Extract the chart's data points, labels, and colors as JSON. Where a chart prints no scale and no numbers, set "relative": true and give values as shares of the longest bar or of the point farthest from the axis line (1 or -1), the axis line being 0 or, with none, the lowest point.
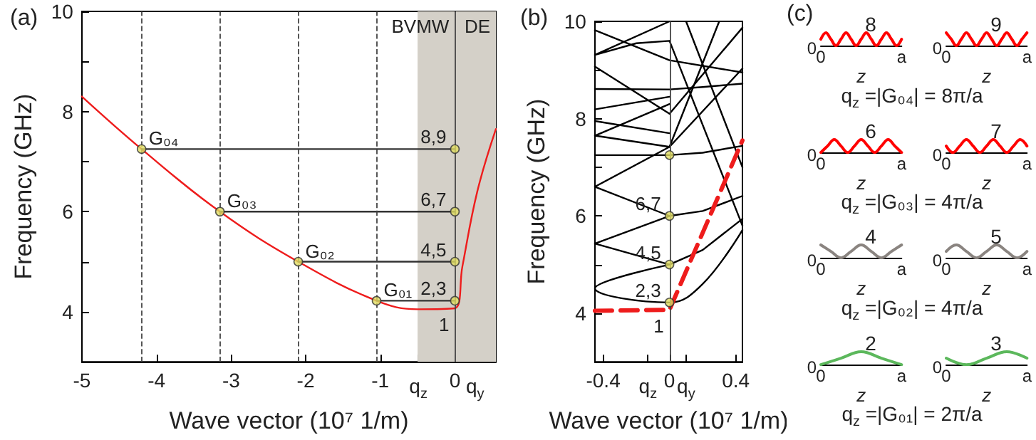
{
  "chart_data": [
    {
      "type": "line",
      "title": "(a)",
      "xlabel": "Wave vector (10⁷ 1/m)",
      "ylabel": "Frequency (GHz)",
      "xlim": [
        -5,
        0.55
      ],
      "ylim": [
        3,
        10
      ],
      "xticks": [
        -5,
        -4,
        -3,
        -2,
        -1,
        {
          "value": -0.49,
          "label": "q$_{z}$"
        },
        0,
        {
          "value": 0.27,
          "label": "q$_{y}$"
        }
      ],
      "yticks": [
        4,
        {
          "value": 5,
          "label": null
        },
        6,
        {
          "value": 7,
          "label": null
        },
        8,
        {
          "value": 9,
          "label": null
        },
        10
      ],
      "marker": "none",
      "line_style": "solid",
      "grid": false,
      "series": [
        {
          "color": "#ee1c1c",
          "x": [
            -5,
            -4.2,
            -3.15,
            -2.1,
            -1.05,
            -0.5,
            0,
            0.1,
            0.3,
            0.55
          ],
          "values": [
            8.3,
            7.25,
            6.0,
            5.0,
            4.22,
            4.05,
            4.07,
            4.9,
            6.4,
            7.65
          ]
        },
        {
          "color": "#333333",
          "x": [
            -4.2,
            0
          ],
          "values": [
            7.25,
            7.25
          ]
        },
        {
          "color": "#333333",
          "x": [
            -3.15,
            0
          ],
          "values": [
            6.0,
            6.0
          ]
        },
        {
          "color": "#333333",
          "x": [
            -2.1,
            0
          ],
          "values": [
            5.0,
            5.0
          ]
        },
        {
          "color": "#333333",
          "x": [
            -1.05,
            0
          ],
          "values": [
            4.22,
            4.22
          ]
        },
        {
          "type": "scatter",
          "marker": "circle",
          "color": "#e0dc60",
          "x": [
            -4.2,
            -3.15,
            -2.1,
            -1.05,
            0,
            0,
            0,
            0
          ],
          "values": [
            7.25,
            6.0,
            5.0,
            4.22,
            7.25,
            6.0,
            5.0,
            4.22
          ]
        }
      ],
      "annotations": [
        {
          "text": "G₀₄",
          "x": -4.2,
          "y": 7.25
        },
        {
          "text": "G₀₃",
          "x": -3.15,
          "y": 6.0
        },
        {
          "text": "G₀₂",
          "x": -2.1,
          "y": 5.0
        },
        {
          "text": "G₀₁",
          "x": -1.05,
          "y": 4.22
        },
        {
          "text": "8,9",
          "x": 0,
          "y": 7.25
        },
        {
          "text": "6,7",
          "x": 0,
          "y": 6.0
        },
        {
          "text": "4,5",
          "x": 0,
          "y": 5.0
        },
        {
          "text": "2,3",
          "x": 0,
          "y": 4.22
        },
        {
          "text": "1",
          "x": 0,
          "y": 4.07
        }
      ],
      "ref_lines": [
        {
          "axis": "x",
          "value": -4.2,
          "line_style": "dashed",
          "color": "#444444"
        },
        {
          "axis": "x",
          "value": -3.15,
          "line_style": "dashed",
          "color": "#444444"
        },
        {
          "axis": "x",
          "value": -2.1,
          "line_style": "dashed",
          "color": "#444444"
        },
        {
          "axis": "x",
          "value": -1.05,
          "line_style": "dashed",
          "color": "#444444"
        },
        {
          "axis": "x",
          "value": 0,
          "line_style": "solid",
          "color": "#444444"
        }
      ],
      "bands": [
        {
          "axis": "x",
          "from": -0.5,
          "to": 0,
          "label": "BVMW",
          "color": "#d4d0c8"
        },
        {
          "axis": "x",
          "from": 0,
          "to": 0.55,
          "label": "DE",
          "color": "#d4d0c8"
        }
      ]
    },
    {
      "type": "line",
      "title": "(b)",
      "xlabel": "Wave vector (10⁷ 1/m)",
      "ylabel": "Frequency (GHz)",
      "xlim": [
        -0.45,
        0.44
      ],
      "ylim": [
        3,
        10
      ],
      "xticks": [
        -0.4,
        {
          "value": -0.13,
          "label": "q$_{z}$"
        },
        0,
        {
          "value": 0.1,
          "label": "q$_{y}$"
        },
        0.4
      ],
      "yticks": [
        4,
        {
          "value": 5,
          "label": null
        },
        6,
        {
          "value": 7,
          "label": null
        },
        8,
        {
          "value": 9,
          "label": null
        },
        10
      ],
      "marker": "none",
      "line_style": "solid",
      "grid": false,
      "series": [
        {
          "color": "#000000",
          "x": [
            0,
            -0.45,
            0,
            0.2,
            0.44
          ],
          "values": [
            5.0,
            4.51,
            4.22,
            4.6,
            5.71
          ]
        },
        {
          "color": "#000000",
          "x": [
            0,
            -0.45,
            0,
            0.2,
            0.44
          ],
          "values": [
            6.0,
            5.43,
            5.0,
            5.3,
            5.94
          ]
        },
        {
          "color": "#000000",
          "x": [
            0.44,
            0,
            -0.45,
            0,
            0.2,
            0.44
          ],
          "values": [
            9.03,
            7.42,
            6.6,
            6.0,
            6.1,
            6.41
          ]
        },
        {
          "color": "#000000",
          "x": [
            -0.45,
            0,
            0.2,
            0.44
          ],
          "values": [
            7.25,
            7.25,
            7.3,
            7.44
          ]
        },
        {
          "color": "#000000",
          "x": [
            0,
            -0.45,
            0,
            0.3
          ],
          "values": [
            8.3,
            7.65,
            7.42,
            10
          ]
        },
        {
          "color": "#000000",
          "x": [
            -0.45,
            0
          ],
          "values": [
            7.95,
            7.7
          ]
        },
        {
          "color": "#000000",
          "x": [
            -0.45,
            0,
            0.2,
            0.44
          ],
          "values": [
            8.61,
            8.6,
            8.65,
            8.72
          ]
        },
        {
          "color": "#000000",
          "x": [
            -0.45,
            0
          ],
          "values": [
            8.19,
            8.45
          ]
        },
        {
          "color": "#000000",
          "x": [
            -0.45,
            0,
            0.44
          ],
          "values": [
            9.07,
            8.1,
            9.87
          ]
        },
        {
          "color": "#000000",
          "x": [
            -0.45,
            0,
            0.44
          ],
          "values": [
            9.82,
            9.2,
            8.95
          ]
        },
        {
          "color": "#000000",
          "x": [
            0,
            -0.45,
            -0.2,
            0,
            0.44
          ],
          "values": [
            10,
            9.31,
            9.55,
            9.6,
            5.8
          ]
        },
        {
          "color": "#000000",
          "x": [
            0.1,
            0.44
          ],
          "values": [
            10,
            7.0
          ]
        },
        {
          "color": "#ee1c1c",
          "line_style": "dashed",
          "x": [
            -0.45,
            0,
            0.44
          ],
          "values": [
            4.05,
            4.07,
            7.55
          ]
        },
        {
          "type": "scatter",
          "marker": "circle",
          "color": "#e0dc60",
          "x": [
            0,
            0,
            0,
            0
          ],
          "values": [
            7.25,
            6.0,
            5.0,
            4.22
          ]
        }
      ],
      "annotations": [
        {
          "text": "6,7",
          "x": 0,
          "y": 6.0
        },
        {
          "text": "4,5",
          "x": 0,
          "y": 5.0
        },
        {
          "text": "2,3",
          "x": 0,
          "y": 4.22
        },
        {
          "text": "1",
          "x": 0,
          "y": 4.07
        }
      ],
      "ref_lines": [
        {
          "axis": "x",
          "value": 0,
          "line_style": "solid",
          "color": "#444444"
        }
      ]
    },
    {
      "type": "other",
      "title": "(c)",
      "annotations": [
        "q$_{z}$ =|G₀₄| = 8π/a",
        "q$_{z}$ =|G₀₃| = 4π/a",
        "q$_{z}$ =|G₀₂| = 4π/a",
        "q$_{z}$ =|G₀₁| = 2π/a"
      ]
    },
    {
      "type": "line",
      "title": "8",
      "relative": true,
      "xlabel": "z",
      "annotations": [
        "0"
      ],
      "categories": [
        "0",
        null,
        null,
        null,
        null,
        null,
        null,
        null,
        null,
        null,
        null,
        null,
        null,
        null,
        null,
        null,
        "a"
      ],
      "series": [
        {
          "color": "#ff0000",
          "values": [
            0.5,
            1,
            0.5,
            0,
            0.5,
            1,
            0.5,
            0,
            0.5,
            1,
            0.5,
            0,
            0.5,
            1,
            0.5,
            0,
            0.5
          ]
        }
      ]
    },
    {
      "type": "line",
      "title": "9",
      "relative": true,
      "xlabel": "z",
      "annotations": [
        "0"
      ],
      "categories": [
        "0",
        null,
        null,
        null,
        null,
        null,
        null,
        null,
        null,
        null,
        null,
        null,
        null,
        null,
        null,
        null,
        "a"
      ],
      "series": [
        {
          "color": "#ff0000",
          "values": [
            1,
            0.5,
            0,
            0.5,
            1,
            0.5,
            0,
            0.5,
            1,
            0.5,
            0,
            0.5,
            1,
            0.5,
            0,
            0.5,
            1
          ]
        }
      ]
    },
    {
      "type": "line",
      "title": "6",
      "relative": true,
      "xlabel": "z",
      "annotations": [
        "0"
      ],
      "categories": [
        "0",
        null,
        null,
        null,
        null,
        null,
        null,
        null,
        null,
        null,
        null,
        null,
        "a"
      ],
      "series": [
        {
          "color": "#ff0000",
          "values": [
            0,
            0.5,
            1,
            0.5,
            0,
            0.5,
            1,
            0.5,
            0,
            0.5,
            1,
            0.5,
            0
          ]
        }
      ]
    },
    {
      "type": "line",
      "title": "7",
      "relative": true,
      "xlabel": "z",
      "annotations": [
        "0"
      ],
      "categories": [
        "0",
        null,
        null,
        null,
        null,
        null,
        null,
        null,
        null,
        null,
        null,
        null,
        "a"
      ],
      "series": [
        {
          "color": "#ff0000",
          "values": [
            0.5,
            0,
            0.5,
            1,
            0.5,
            0,
            0.5,
            1,
            0.5,
            0,
            0.5,
            1,
            0.5
          ]
        }
      ]
    },
    {
      "type": "line",
      "title": "4",
      "relative": true,
      "xlabel": "z",
      "annotations": [
        "0"
      ],
      "categories": [
        "0",
        null,
        null,
        null,
        null,
        null,
        null,
        null,
        "a"
      ],
      "series": [
        {
          "color": "#8a8480",
          "values": [
            1,
            0.5,
            0,
            0.5,
            1,
            0.5,
            0,
            0.5,
            1
          ]
        }
      ]
    },
    {
      "type": "line",
      "title": "5",
      "relative": true,
      "xlabel": "z",
      "annotations": [
        "0"
      ],
      "categories": [
        "0",
        null,
        null,
        null,
        null,
        null,
        null,
        null,
        "a"
      ],
      "series": [
        {
          "color": "#8a8480",
          "values": [
            0.5,
            1,
            0.5,
            0,
            0.5,
            1,
            0.5,
            0,
            0.5
          ]
        }
      ]
    },
    {
      "type": "line",
      "title": "2",
      "relative": true,
      "xlabel": "z",
      "annotations": [
        "0"
      ],
      "categories": [
        "0",
        null,
        null,
        null,
        "a"
      ],
      "series": [
        {
          "color": "#5cb85c",
          "values": [
            0,
            0.5,
            1,
            0.5,
            0
          ]
        }
      ]
    },
    {
      "type": "line",
      "title": "3",
      "relative": true,
      "xlabel": "z",
      "annotations": [
        "0"
      ],
      "categories": [
        "0",
        null,
        null,
        null,
        "a"
      ],
      "series": [
        {
          "color": "#5cb85c",
          "values": [
            0.5,
            0,
            0.5,
            1,
            0.5
          ]
        }
      ]
    }
  ]
}
